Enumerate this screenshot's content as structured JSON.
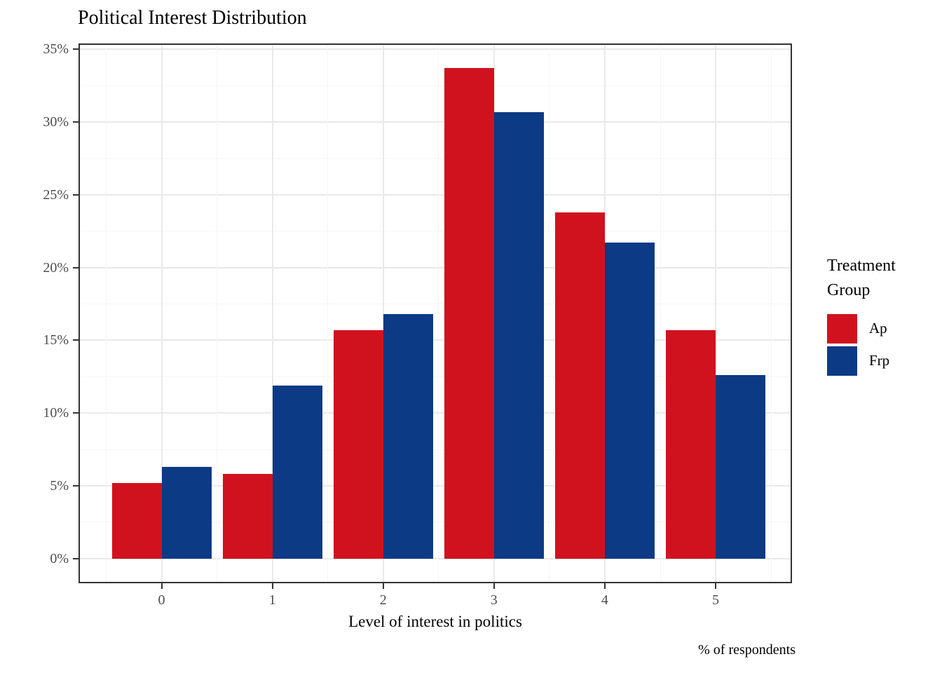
{
  "chart_data": {
    "type": "bar",
    "title": "Political Interest Distribution",
    "xlabel": "Level of interest in politics",
    "ylabel": "",
    "caption": "% of respondents",
    "legend_title": "Treatment Group",
    "legend_position": "right",
    "categories": [
      "0",
      "1",
      "2",
      "3",
      "4",
      "5"
    ],
    "series": [
      {
        "name": "Ap",
        "color": "#D0121E",
        "values": [
          5.2,
          5.8,
          15.7,
          33.7,
          23.8,
          15.7
        ]
      },
      {
        "name": "Frp",
        "color": "#0C3A85",
        "values": [
          6.3,
          11.9,
          16.8,
          30.7,
          21.7,
          12.6
        ]
      }
    ],
    "yticks": [
      {
        "value": 0,
        "label": "0%"
      },
      {
        "value": 5,
        "label": "5%"
      },
      {
        "value": 10,
        "label": "10%"
      },
      {
        "value": 15,
        "label": "15%"
      },
      {
        "value": 20,
        "label": "20%"
      },
      {
        "value": 25,
        "label": "25%"
      },
      {
        "value": 30,
        "label": "30%"
      },
      {
        "value": 35,
        "label": "35%"
      }
    ],
    "yminor": [
      2.5,
      7.5,
      12.5,
      17.5,
      22.5,
      27.5,
      32.5
    ],
    "ylim": [
      -1.7,
      35.4
    ],
    "grid": {
      "major": true,
      "minor": true
    },
    "bar_layout": "dodge"
  },
  "colors": {
    "panel_border": "#333333",
    "grid_major": "#E9E9E9",
    "grid_minor": "#F5F5F5",
    "axis_text": "#4D4D4D",
    "background": "#FFFFFF"
  }
}
